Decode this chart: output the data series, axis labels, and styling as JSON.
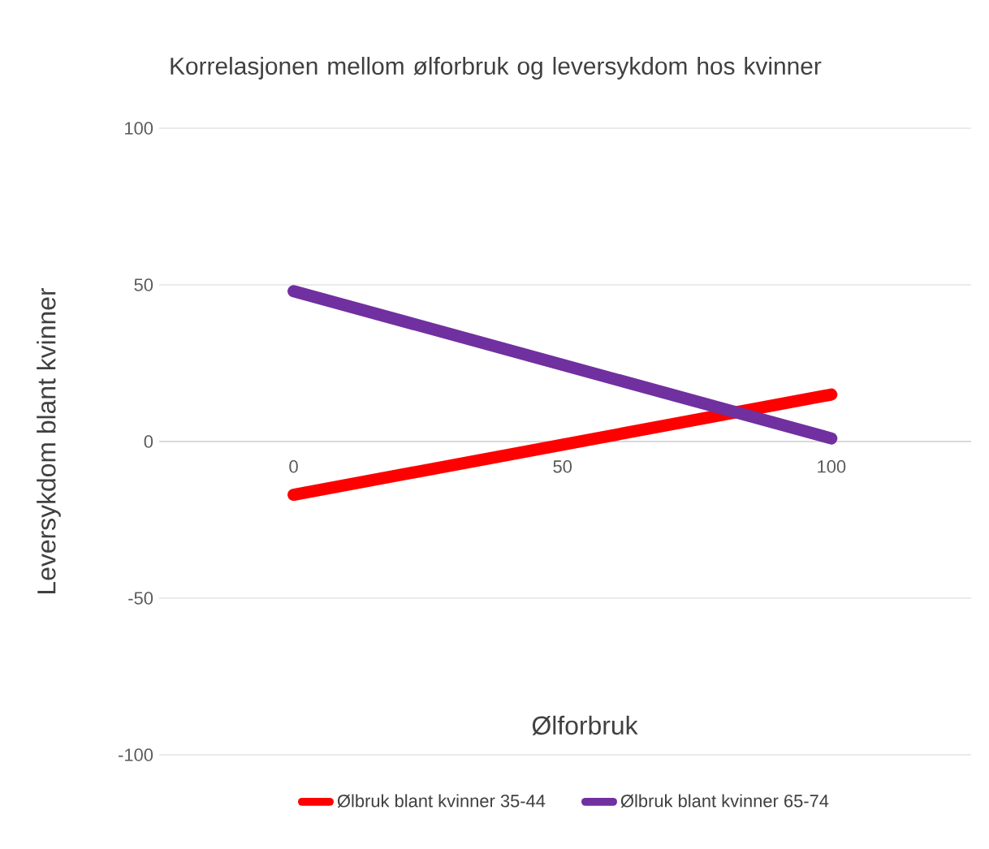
{
  "chart_data": {
    "type": "line",
    "title": "Korrelasjonen mellom ølforbruk og leversykdom hos kvinner",
    "xlabel": "Ølforbruk",
    "ylabel": "Leversykdom blant kvinner",
    "x": [
      0,
      100
    ],
    "series": [
      {
        "name": "Ølbruk blant kvinner 35-44",
        "color": "#ff0000",
        "values": [
          -17,
          15
        ]
      },
      {
        "name": "Ølbruk blant kvinner 65-74",
        "color": "#7030a0",
        "values": [
          48,
          1
        ]
      }
    ],
    "xlim": [
      -25,
      126
    ],
    "xticks": [
      0,
      50,
      100
    ],
    "ylim": [
      -100,
      100
    ],
    "yticks": [
      -100,
      -50,
      0,
      50,
      100
    ],
    "grid": "y",
    "legend": "bottom",
    "marker": "none",
    "line_style": "solid"
  }
}
